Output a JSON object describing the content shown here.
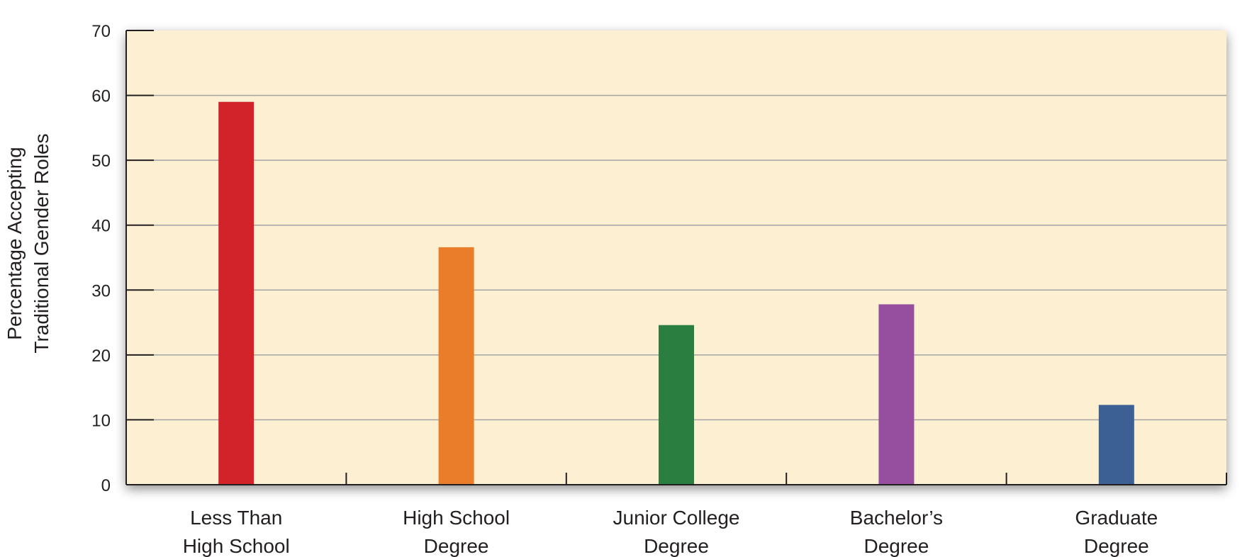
{
  "chart_data": {
    "type": "bar",
    "title": "",
    "xlabel": "",
    "ylabel": [
      "Percentage Accepting",
      "Traditional Gender Roles"
    ],
    "ylim": [
      0,
      70
    ],
    "yticks": [
      0,
      10,
      20,
      30,
      40,
      50,
      60,
      70
    ],
    "grid": true,
    "categories": [
      [
        "Less Than",
        "High School"
      ],
      [
        "High School",
        "Degree"
      ],
      [
        "Junior College",
        "Degree"
      ],
      [
        "Bachelor’s",
        "Degree"
      ],
      [
        "Graduate",
        "Degree"
      ]
    ],
    "values": [
      59,
      36.6,
      24.6,
      27.8,
      12.3
    ],
    "colors": [
      "#d2232a",
      "#ea7d2a",
      "#2a7f40",
      "#954f9e",
      "#3c6094"
    ],
    "plot_background": "#fdf0d2",
    "grid_color": "#a3a3a3"
  }
}
